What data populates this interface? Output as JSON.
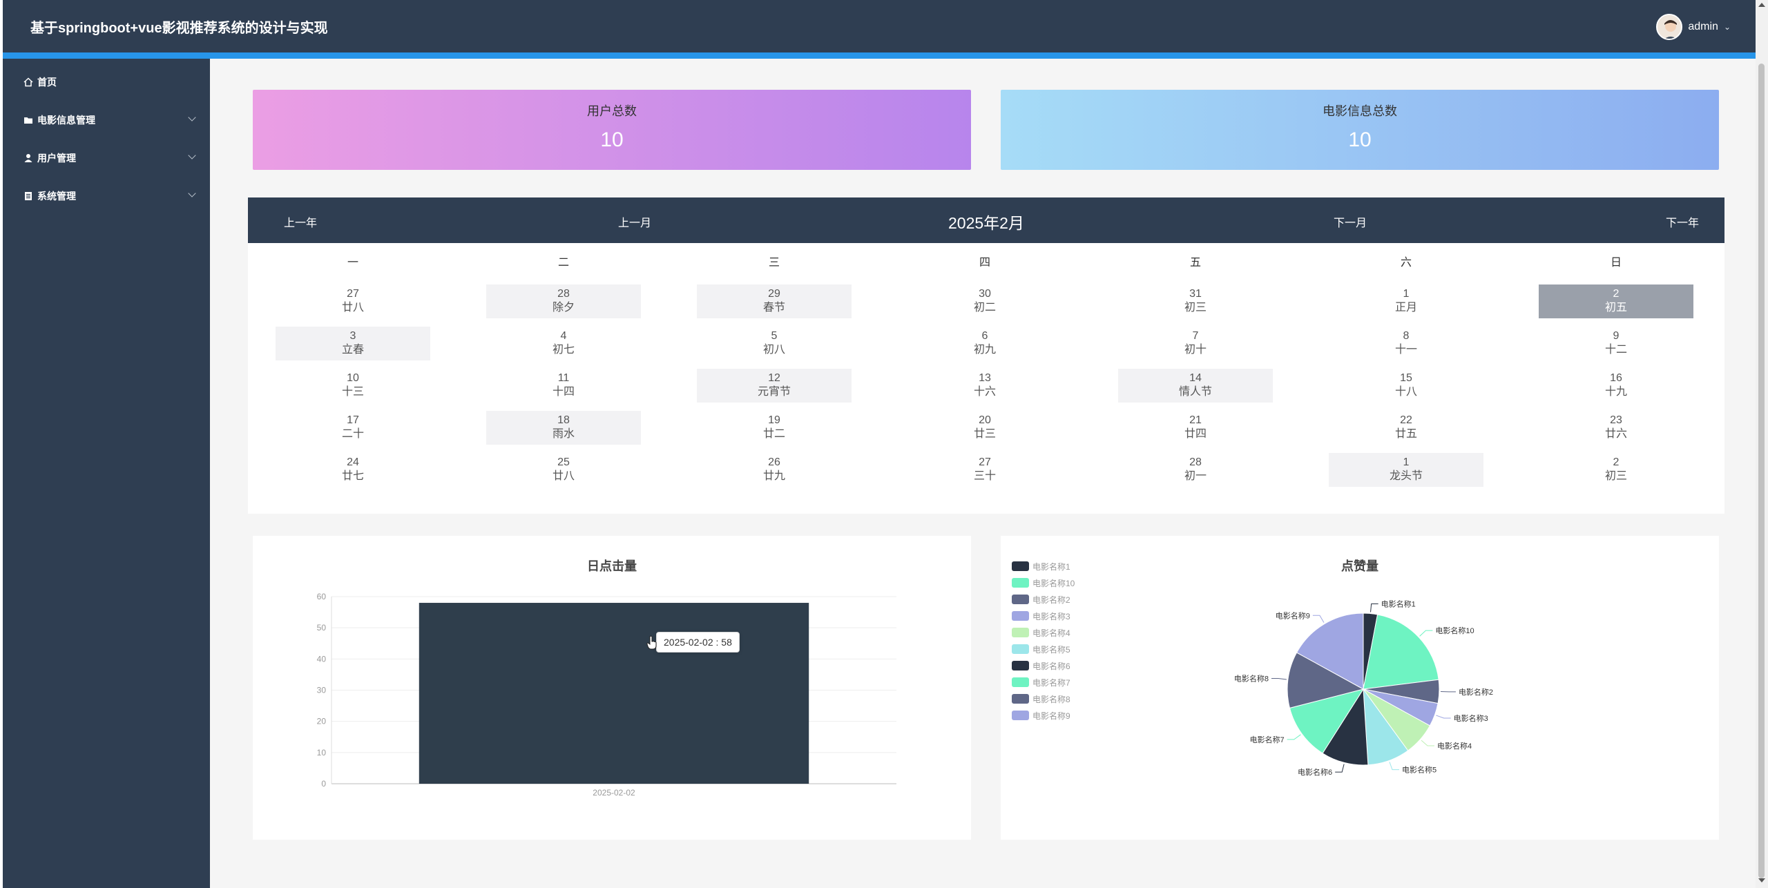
{
  "header": {
    "title": "基于springboot+vue影视推荐系统的设计与实现",
    "username": "admin"
  },
  "sidebar": {
    "items": [
      {
        "label": "首页",
        "icon": "home-icon"
      },
      {
        "label": "电影信息管理",
        "icon": "folder-icon"
      },
      {
        "label": "用户管理",
        "icon": "user-icon"
      },
      {
        "label": "系统管理",
        "icon": "document-icon"
      }
    ]
  },
  "stats": {
    "users": {
      "label": "用户总数",
      "value": "10"
    },
    "movies": {
      "label": "电影信息总数",
      "value": "10"
    }
  },
  "calendar": {
    "prev_year": "上一年",
    "prev_month": "上一月",
    "title": "2025年2月",
    "next_month": "下一月",
    "next_year": "下一年",
    "weekdays": [
      "一",
      "二",
      "三",
      "四",
      "五",
      "六",
      "日"
    ],
    "weeks": [
      [
        {
          "d": "27",
          "l": "廿八"
        },
        {
          "d": "28",
          "l": "除夕",
          "hl": true
        },
        {
          "d": "29",
          "l": "春节",
          "hl": true
        },
        {
          "d": "30",
          "l": "初二"
        },
        {
          "d": "31",
          "l": "初三"
        },
        {
          "d": "1",
          "l": "正月"
        },
        {
          "d": "2",
          "l": "初五",
          "sel": true
        }
      ],
      [
        {
          "d": "3",
          "l": "立春",
          "hl": true
        },
        {
          "d": "4",
          "l": "初七"
        },
        {
          "d": "5",
          "l": "初八"
        },
        {
          "d": "6",
          "l": "初九"
        },
        {
          "d": "7",
          "l": "初十"
        },
        {
          "d": "8",
          "l": "十一"
        },
        {
          "d": "9",
          "l": "十二"
        }
      ],
      [
        {
          "d": "10",
          "l": "十三"
        },
        {
          "d": "11",
          "l": "十四"
        },
        {
          "d": "12",
          "l": "元宵节",
          "hl": true
        },
        {
          "d": "13",
          "l": "十六"
        },
        {
          "d": "14",
          "l": "情人节",
          "hl": true
        },
        {
          "d": "15",
          "l": "十八"
        },
        {
          "d": "16",
          "l": "十九"
        }
      ],
      [
        {
          "d": "17",
          "l": "二十"
        },
        {
          "d": "18",
          "l": "雨水",
          "hl": true
        },
        {
          "d": "19",
          "l": "廿二"
        },
        {
          "d": "20",
          "l": "廿三"
        },
        {
          "d": "21",
          "l": "廿四"
        },
        {
          "d": "22",
          "l": "廿五"
        },
        {
          "d": "23",
          "l": "廿六"
        }
      ],
      [
        {
          "d": "24",
          "l": "廿七"
        },
        {
          "d": "25",
          "l": "廿八"
        },
        {
          "d": "26",
          "l": "廿九"
        },
        {
          "d": "27",
          "l": "三十"
        },
        {
          "d": "28",
          "l": "初一"
        },
        {
          "d": "1",
          "l": "龙头节",
          "hl": true
        },
        {
          "d": "2",
          "l": "初三"
        }
      ]
    ]
  },
  "chart_data": [
    {
      "type": "bar",
      "title": "日点击量",
      "categories": [
        "2025-02-02"
      ],
      "values": [
        58
      ],
      "ylim": [
        0,
        60
      ],
      "yticks": [
        0,
        10,
        20,
        30,
        40,
        50,
        60
      ],
      "bar_color": "#2f3e4c",
      "tooltip": "2025-02-02 : 58",
      "grid": true
    },
    {
      "type": "pie",
      "title": "点赞量",
      "legend_position": "top-left",
      "slices": [
        {
          "name": "电影名称1",
          "value": 3,
          "color": "#283242"
        },
        {
          "name": "电影名称10",
          "value": 20,
          "color": "#6ef3c2"
        },
        {
          "name": "电影名称2",
          "value": 5,
          "color": "#5f6787"
        },
        {
          "name": "电影名称3",
          "value": 5,
          "color": "#9fa6e2"
        },
        {
          "name": "电影名称4",
          "value": 7,
          "color": "#bff1b5"
        },
        {
          "name": "电影名称5",
          "value": 9,
          "color": "#9ce6ea"
        },
        {
          "name": "电影名称6",
          "value": 10,
          "color": "#283242"
        },
        {
          "name": "电影名称7",
          "value": 12,
          "color": "#6ef3c2"
        },
        {
          "name": "电影名称8",
          "value": 12,
          "color": "#5f6787"
        },
        {
          "name": "电影名称9",
          "value": 17,
          "color": "#9fa6e2"
        }
      ]
    }
  ]
}
